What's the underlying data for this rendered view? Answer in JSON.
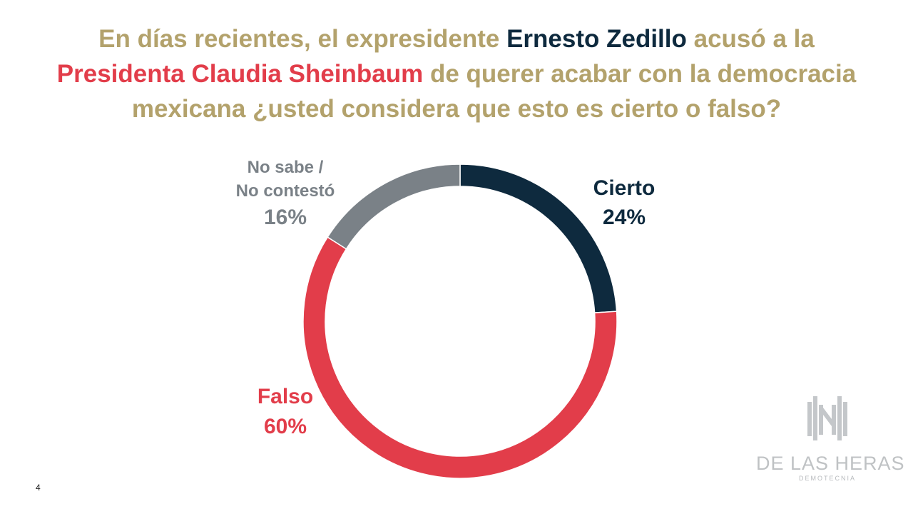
{
  "title": {
    "part1": "En días recientes, el expresidente ",
    "highlight_navy": "Ernesto Zedillo",
    "part2": " acusó a la ",
    "highlight_red": "Presidenta Claudia Sheinbaum",
    "part3": " de querer acabar con la democracia mexicana ¿usted considera que esto es cierto o falso?"
  },
  "chart_data": {
    "type": "pie",
    "variant": "donut",
    "slices": [
      {
        "label": "Cierto",
        "value": 24,
        "value_label": "24%",
        "color": "#0e2a3e"
      },
      {
        "label": "Falso",
        "value": 60,
        "value_label": "60%",
        "color": "#e23d4a"
      },
      {
        "label": "No sabe / No contestó",
        "value": 16,
        "value_label": "16%",
        "color": "#7a8187"
      }
    ],
    "start": "12 o'clock",
    "direction": "clockwise"
  },
  "labels": {
    "cierto": {
      "name": "Cierto",
      "pct": "24%"
    },
    "falso": {
      "name": "Falso",
      "pct": "60%"
    },
    "nosabe": {
      "line1": "No sabe /",
      "line2": "No contestó",
      "pct": "16%"
    }
  },
  "logo": {
    "name": "DE LAS HERAS",
    "sub": "DEMOTECNIA"
  },
  "page_number": "4"
}
